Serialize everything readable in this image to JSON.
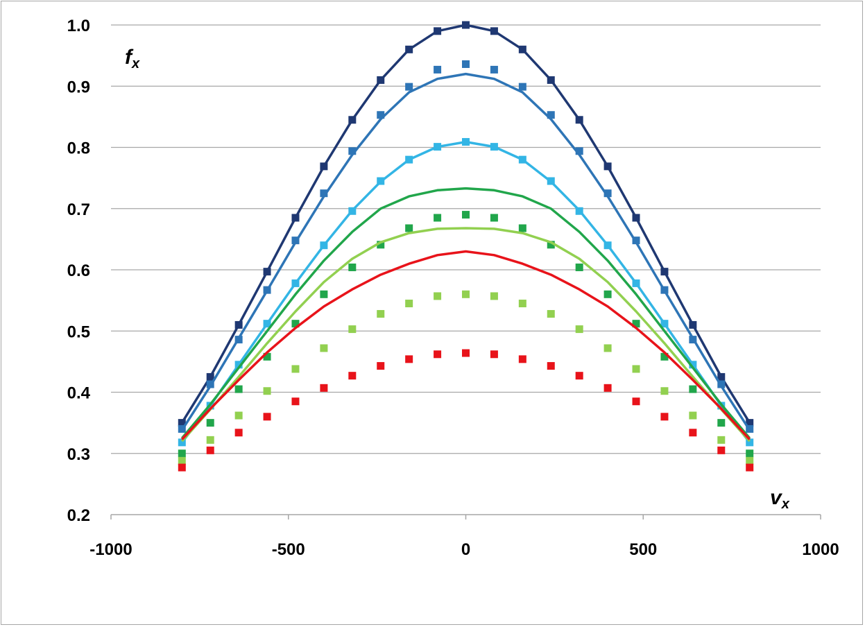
{
  "chart_data": {
    "type": "scatter",
    "title": "",
    "xlabel": "v",
    "xlabel_sub": "x",
    "ylabel": "f",
    "ylabel_sub": "x",
    "xlim": [
      -1000,
      1000
    ],
    "ylim": [
      0.2,
      1.0
    ],
    "xticks": [
      -1000,
      -500,
      0,
      500,
      1000
    ],
    "yticks": [
      0.2,
      0.3,
      0.4,
      0.5,
      0.6,
      0.7,
      0.8,
      0.9,
      1.0
    ],
    "ytick_labels": [
      "0.2",
      "0.3",
      "0.4",
      "0.5",
      "0.6",
      "0.7",
      "0.8",
      "0.9",
      "1.0"
    ],
    "xtick_labels": [
      "-1000",
      "-500",
      "0",
      "500",
      "1000"
    ],
    "grid": "horizontal",
    "legend": "none",
    "x": [
      -800,
      -720,
      -640,
      -560,
      -480,
      -400,
      -320,
      -240,
      -160,
      -80,
      0,
      80,
      160,
      240,
      320,
      400,
      480,
      560,
      640,
      720,
      800
    ],
    "series": [
      {
        "color": "#1f3872",
        "line": [
          0.35,
          0.425,
          0.51,
          0.597,
          0.685,
          0.769,
          0.845,
          0.91,
          0.96,
          0.99,
          1.0,
          0.99,
          0.96,
          0.91,
          0.845,
          0.769,
          0.685,
          0.597,
          0.51,
          0.425,
          0.35
        ],
        "markers": [
          0.35,
          0.425,
          0.51,
          0.597,
          0.685,
          0.769,
          0.845,
          0.91,
          0.96,
          0.99,
          1.0,
          0.99,
          0.96,
          0.91,
          0.845,
          0.769,
          0.685,
          0.597,
          0.51,
          0.425,
          0.35
        ]
      },
      {
        "color": "#2e75b6",
        "line": [
          0.338,
          0.41,
          0.488,
          0.566,
          0.645,
          0.72,
          0.788,
          0.846,
          0.89,
          0.912,
          0.92,
          0.912,
          0.89,
          0.846,
          0.788,
          0.72,
          0.645,
          0.566,
          0.488,
          0.41,
          0.338
        ],
        "markers": [
          0.34,
          0.413,
          0.486,
          0.567,
          0.648,
          0.725,
          0.794,
          0.853,
          0.899,
          0.927,
          0.936,
          0.927,
          0.899,
          0.853,
          0.794,
          0.725,
          0.648,
          0.567,
          0.486,
          0.413,
          0.34
        ]
      },
      {
        "color": "#33b5e5",
        "line": [
          0.318,
          0.378,
          0.445,
          0.512,
          0.578,
          0.64,
          0.697,
          0.744,
          0.78,
          0.801,
          0.809,
          0.801,
          0.78,
          0.744,
          0.697,
          0.64,
          0.578,
          0.512,
          0.445,
          0.378,
          0.318
        ],
        "markers": [
          0.318,
          0.378,
          0.445,
          0.512,
          0.578,
          0.64,
          0.696,
          0.745,
          0.78,
          0.801,
          0.809,
          0.801,
          0.78,
          0.745,
          0.696,
          0.64,
          0.578,
          0.512,
          0.445,
          0.378,
          0.318
        ]
      },
      {
        "color": "#21a64b",
        "line": [
          0.325,
          0.38,
          0.44,
          0.5,
          0.56,
          0.615,
          0.662,
          0.7,
          0.72,
          0.73,
          0.733,
          0.73,
          0.72,
          0.7,
          0.662,
          0.615,
          0.56,
          0.5,
          0.44,
          0.38,
          0.325
        ],
        "markers": [
          0.3,
          0.35,
          0.405,
          0.458,
          0.512,
          0.56,
          0.604,
          0.641,
          0.668,
          0.685,
          0.69,
          0.685,
          0.668,
          0.641,
          0.604,
          0.56,
          0.512,
          0.458,
          0.405,
          0.35,
          0.3
        ]
      },
      {
        "color": "#92d050",
        "line": [
          0.32,
          0.372,
          0.425,
          0.48,
          0.532,
          0.58,
          0.618,
          0.645,
          0.66,
          0.667,
          0.668,
          0.667,
          0.66,
          0.645,
          0.618,
          0.58,
          0.532,
          0.48,
          0.425,
          0.372,
          0.32
        ],
        "markers": [
          0.288,
          0.322,
          0.362,
          0.402,
          0.438,
          0.472,
          0.503,
          0.528,
          0.545,
          0.557,
          0.56,
          0.557,
          0.545,
          0.528,
          0.503,
          0.472,
          0.438,
          0.402,
          0.362,
          0.322,
          0.288
        ]
      },
      {
        "color": "#e8131a",
        "line": [
          0.323,
          0.373,
          0.42,
          0.465,
          0.505,
          0.54,
          0.568,
          0.592,
          0.61,
          0.624,
          0.63,
          0.624,
          0.61,
          0.592,
          0.568,
          0.54,
          0.505,
          0.465,
          0.42,
          0.373,
          0.323
        ],
        "markers": [
          0.277,
          0.305,
          0.334,
          0.36,
          0.385,
          0.407,
          0.427,
          0.443,
          0.454,
          0.462,
          0.464,
          0.462,
          0.454,
          0.443,
          0.427,
          0.407,
          0.385,
          0.36,
          0.334,
          0.305,
          0.277
        ]
      }
    ]
  }
}
